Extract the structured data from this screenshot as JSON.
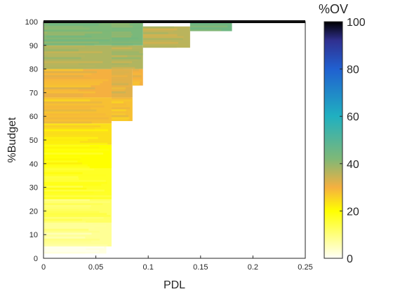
{
  "chart_data": {
    "type": "heatmap",
    "title": "",
    "xlabel": "PDL",
    "ylabel": "%Budget",
    "xlim": [
      0,
      0.25
    ],
    "ylim": [
      0,
      100
    ],
    "x_ticks": [
      "0",
      "0.05",
      "0.1",
      "0.15",
      "0.2",
      "0.25"
    ],
    "x_tick_values": [
      0,
      0.05,
      0.1,
      0.15,
      0.2,
      0.25
    ],
    "y_ticks": [
      "0",
      "10",
      "20",
      "30",
      "40",
      "50",
      "60",
      "70",
      "80",
      "90",
      "100"
    ],
    "y_tick_values": [
      0,
      10,
      20,
      30,
      40,
      50,
      60,
      70,
      80,
      90,
      100
    ],
    "colorbar": {
      "label": "%OV",
      "range": [
        0,
        100
      ],
      "ticks": [
        "0",
        "20",
        "40",
        "60",
        "80",
        "100"
      ],
      "tick_values": [
        0,
        20,
        40,
        60,
        80,
        100
      ],
      "colors": [
        "#fffff8",
        "#ffff00",
        "#f5b040",
        "#7fb877",
        "#20b0c0",
        "#2060d0",
        "#303090",
        "#000000"
      ]
    },
    "regions": [
      {
        "x": [
          0,
          0.005
        ],
        "y": [
          85,
          100
        ],
        "value": 40
      },
      {
        "x": [
          0.0,
          0.06
        ],
        "y": [
          2,
          5
        ],
        "value": 2
      },
      {
        "x": [
          0.0,
          0.065
        ],
        "y": [
          5,
          15
        ],
        "value": 8
      },
      {
        "x": [
          0.0,
          0.065
        ],
        "y": [
          15,
          25
        ],
        "value": 12
      },
      {
        "x": [
          0.0,
          0.065
        ],
        "y": [
          25,
          38
        ],
        "value": 17
      },
      {
        "x": [
          0.0,
          0.065
        ],
        "y": [
          38,
          48
        ],
        "value": 20
      },
      {
        "x": [
          0.0,
          0.065
        ],
        "y": [
          48,
          57
        ],
        "value": 24
      },
      {
        "x": [
          0.0,
          0.065
        ],
        "y": [
          57,
          68
        ],
        "value": 28
      },
      {
        "x": [
          0.0,
          0.065
        ],
        "y": [
          68,
          80
        ],
        "value": 30
      },
      {
        "x": [
          0.0,
          0.065
        ],
        "y": [
          80,
          90
        ],
        "value": 37
      },
      {
        "x": [
          0.0,
          0.065
        ],
        "y": [
          90,
          100
        ],
        "value": 42
      },
      {
        "x": [
          0.065,
          0.085
        ],
        "y": [
          58,
          68
        ],
        "value": 28
      },
      {
        "x": [
          0.065,
          0.085
        ],
        "y": [
          68,
          80
        ],
        "value": 32
      },
      {
        "x": [
          0.065,
          0.095
        ],
        "y": [
          80,
          90
        ],
        "value": 37
      },
      {
        "x": [
          0.065,
          0.095
        ],
        "y": [
          90,
          100
        ],
        "value": 43
      },
      {
        "x": [
          0.085,
          0.095
        ],
        "y": [
          73,
          80
        ],
        "value": 30
      },
      {
        "x": [
          0.095,
          0.14
        ],
        "y": [
          89,
          98
        ],
        "value": 36
      },
      {
        "x": [
          0.14,
          0.18
        ],
        "y": [
          96,
          100
        ],
        "value": 45
      },
      {
        "x": [
          0.0,
          0.18
        ],
        "y": [
          100,
          100
        ],
        "value": 100
      }
    ],
    "grid": false
  }
}
